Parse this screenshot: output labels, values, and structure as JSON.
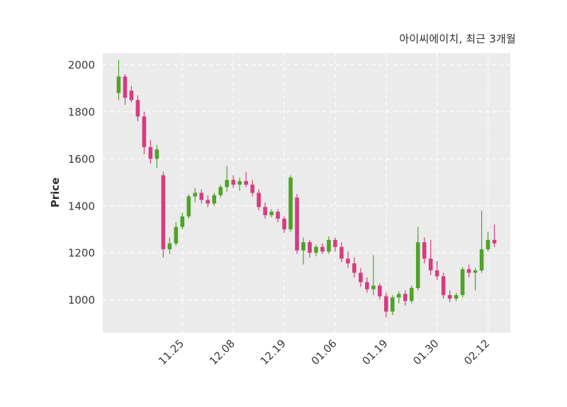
{
  "title": "아이씨에이치, 최근 3개월",
  "ylabel": "Price",
  "colors": {
    "up": "#4fa328",
    "down": "#d63c80",
    "plot_bg": "#ebebeb",
    "grid": "#ffffff",
    "text": "#3a3a3a",
    "title_text": "#2f2f2f",
    "figure_bg": "#ffffff"
  },
  "chart_data": {
    "type": "candlestick",
    "title": "아이씨에이치, 최근 3개월",
    "ylabel": "Price",
    "xlabel": "",
    "grid": true,
    "grid_style": "dashed",
    "ylim": [
      860,
      2050
    ],
    "yticks": [
      1000,
      1200,
      1400,
      1600,
      1800,
      2000
    ],
    "xtick_labels": [
      "11.25",
      "12.08",
      "12.19",
      "01.06",
      "01.19",
      "01.30",
      "02.12"
    ],
    "xtick_indices": [
      10,
      18,
      26,
      34,
      42,
      50,
      58
    ],
    "series_note": "candles are [open, high, low, close]; close>=open rendered green (up), close<open rendered magenta (down)",
    "candles": [
      [
        1880,
        2020,
        1850,
        1950
      ],
      [
        1950,
        1960,
        1830,
        1860
      ],
      [
        1890,
        1910,
        1840,
        1850
      ],
      [
        1850,
        1870,
        1760,
        1780
      ],
      [
        1780,
        1800,
        1620,
        1650
      ],
      [
        1650,
        1680,
        1580,
        1600
      ],
      [
        1600,
        1660,
        1560,
        1640
      ],
      [
        1530,
        1545,
        1180,
        1215
      ],
      [
        1215,
        1265,
        1195,
        1240
      ],
      [
        1240,
        1330,
        1230,
        1310
      ],
      [
        1310,
        1370,
        1300,
        1355
      ],
      [
        1355,
        1450,
        1345,
        1440
      ],
      [
        1440,
        1475,
        1415,
        1455
      ],
      [
        1455,
        1470,
        1410,
        1425
      ],
      [
        1425,
        1445,
        1395,
        1410
      ],
      [
        1410,
        1455,
        1400,
        1445
      ],
      [
        1445,
        1490,
        1435,
        1480
      ],
      [
        1480,
        1570,
        1460,
        1510
      ],
      [
        1510,
        1530,
        1475,
        1490
      ],
      [
        1490,
        1520,
        1465,
        1505
      ],
      [
        1505,
        1545,
        1480,
        1490
      ],
      [
        1490,
        1510,
        1440,
        1455
      ],
      [
        1455,
        1470,
        1380,
        1395
      ],
      [
        1395,
        1415,
        1345,
        1360
      ],
      [
        1360,
        1385,
        1350,
        1375
      ],
      [
        1375,
        1385,
        1330,
        1345
      ],
      [
        1345,
        1355,
        1285,
        1300
      ],
      [
        1300,
        1530,
        1290,
        1520
      ],
      [
        1435,
        1450,
        1195,
        1210
      ],
      [
        1210,
        1265,
        1150,
        1245
      ],
      [
        1245,
        1255,
        1180,
        1200
      ],
      [
        1200,
        1235,
        1185,
        1225
      ],
      [
        1225,
        1240,
        1195,
        1205
      ],
      [
        1205,
        1270,
        1195,
        1255
      ],
      [
        1255,
        1265,
        1205,
        1225
      ],
      [
        1225,
        1245,
        1160,
        1175
      ],
      [
        1175,
        1205,
        1135,
        1155
      ],
      [
        1155,
        1180,
        1095,
        1115
      ],
      [
        1115,
        1135,
        1055,
        1075
      ],
      [
        1075,
        1095,
        1030,
        1045
      ],
      [
        1045,
        1190,
        1020,
        1060
      ],
      [
        1060,
        1070,
        1000,
        1015
      ],
      [
        1015,
        1030,
        925,
        950
      ],
      [
        950,
        1020,
        935,
        1010
      ],
      [
        1010,
        1035,
        985,
        1025
      ],
      [
        1025,
        1040,
        975,
        995
      ],
      [
        995,
        1060,
        985,
        1050
      ],
      [
        1050,
        1310,
        1040,
        1245
      ],
      [
        1245,
        1265,
        1155,
        1175
      ],
      [
        1175,
        1255,
        1105,
        1125
      ],
      [
        1125,
        1165,
        1085,
        1100
      ],
      [
        1100,
        1115,
        1005,
        1020
      ],
      [
        1020,
        1040,
        990,
        1005
      ],
      [
        1005,
        1030,
        995,
        1020
      ],
      [
        1020,
        1140,
        1010,
        1130
      ],
      [
        1130,
        1150,
        1095,
        1115
      ],
      [
        1115,
        1135,
        1040,
        1125
      ],
      [
        1125,
        1380,
        1115,
        1215
      ],
      [
        1215,
        1290,
        1205,
        1255
      ],
      [
        1255,
        1320,
        1225,
        1240
      ]
    ]
  }
}
